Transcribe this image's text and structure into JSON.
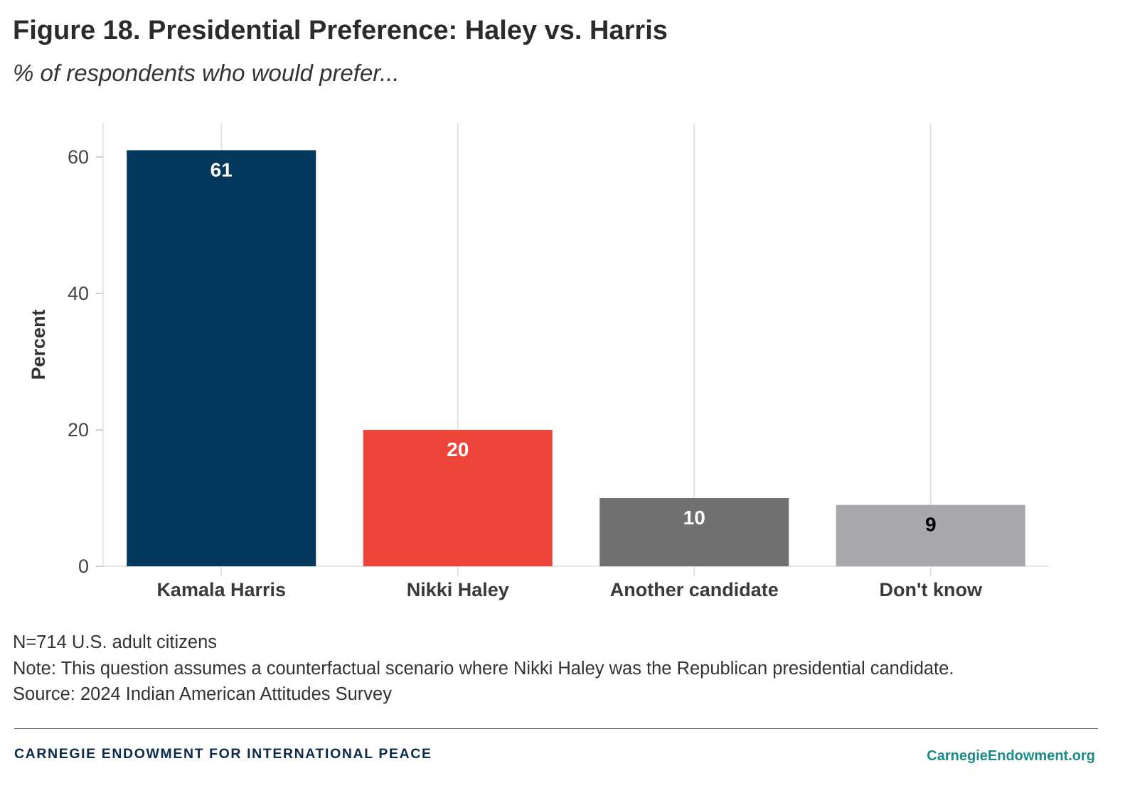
{
  "header": {
    "title": "Figure 18. Presidential Preference: Haley vs. Harris",
    "subtitle": "% of respondents who would prefer..."
  },
  "chart_data": {
    "type": "bar",
    "title": "Figure 18. Presidential Preference: Haley vs. Harris",
    "subtitle": "% of respondents who would prefer...",
    "xlabel": "",
    "ylabel": "Percent",
    "categories": [
      "Kamala Harris",
      "Nikki Haley",
      "Another candidate",
      "Don't know"
    ],
    "values": [
      61,
      20,
      10,
      9
    ],
    "value_labels": [
      "61",
      "20",
      "10",
      "9"
    ],
    "bar_colors": [
      "#03375c",
      "#ee4439",
      "#717174",
      "#a7a8ab"
    ],
    "label_colors": [
      "#ffffff",
      "#ffffff",
      "#ffffff",
      "#000000"
    ],
    "ylim": [
      0,
      66
    ],
    "yticks": [
      0,
      20,
      40,
      60
    ],
    "ytick_labels": [
      "0",
      "20",
      "40",
      "60"
    ],
    "grid": "vertical",
    "legend": "none"
  },
  "footer": {
    "notes": [
      "N=714 U.S. adult citizens",
      "Note: This question assumes a counterfactual scenario where Nikki Haley was the Republican presidential candidate.",
      "Source: 2024 Indian American Attitudes Survey"
    ],
    "organization": "CARNEGIE ENDOWMENT FOR INTERNATIONAL PEACE",
    "website": "CarnegieEndowment.org"
  }
}
